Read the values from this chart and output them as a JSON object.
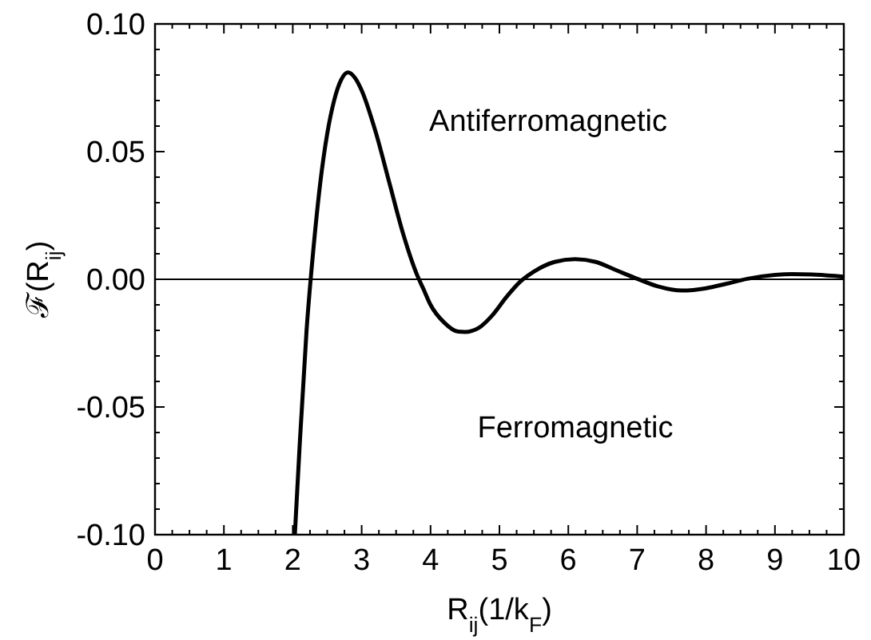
{
  "chart_data": {
    "type": "line",
    "xlabel": "R$_{ij}$(1/k$_{F}$)",
    "ylabel": "ℱ(R$_{ij}$)",
    "annotations": [
      "Antiferromagnetic",
      "Ferromagnetic"
    ],
    "xlim": [
      0,
      10
    ],
    "ylim": [
      -0.1,
      0.1
    ],
    "xticks": [
      0,
      {
        "value": 0.25,
        "label": null
      },
      {
        "value": 0.5,
        "label": null
      },
      {
        "value": 0.75,
        "label": null
      },
      1,
      {
        "value": 1.25,
        "label": null
      },
      {
        "value": 1.5,
        "label": null
      },
      {
        "value": 1.75,
        "label": null
      },
      2,
      {
        "value": 2.25,
        "label": null
      },
      {
        "value": 2.5,
        "label": null
      },
      {
        "value": 2.75,
        "label": null
      },
      3,
      {
        "value": 3.25,
        "label": null
      },
      {
        "value": 3.5,
        "label": null
      },
      {
        "value": 3.75,
        "label": null
      },
      4,
      {
        "value": 4.25,
        "label": null
      },
      {
        "value": 4.5,
        "label": null
      },
      {
        "value": 4.75,
        "label": null
      },
      5,
      {
        "value": 5.25,
        "label": null
      },
      {
        "value": 5.5,
        "label": null
      },
      {
        "value": 5.75,
        "label": null
      },
      6,
      {
        "value": 6.25,
        "label": null
      },
      {
        "value": 6.5,
        "label": null
      },
      {
        "value": 6.75,
        "label": null
      },
      7,
      {
        "value": 7.25,
        "label": null
      },
      {
        "value": 7.5,
        "label": null
      },
      {
        "value": 7.75,
        "label": null
      },
      8,
      {
        "value": 8.25,
        "label": null
      },
      {
        "value": 8.5,
        "label": null
      },
      {
        "value": 8.75,
        "label": null
      },
      9,
      {
        "value": 9.25,
        "label": null
      },
      {
        "value": 9.5,
        "label": null
      },
      {
        "value": 9.75,
        "label": null
      },
      10
    ],
    "yticks": [
      {
        "value": -0.1,
        "label": "-0.10"
      },
      {
        "value": -0.09,
        "label": null
      },
      {
        "value": -0.08,
        "label": null
      },
      {
        "value": -0.07,
        "label": null
      },
      {
        "value": -0.06,
        "label": null
      },
      {
        "value": -0.05,
        "label": "-0.05"
      },
      {
        "value": -0.04,
        "label": null
      },
      {
        "value": -0.03,
        "label": null
      },
      {
        "value": -0.02,
        "label": null
      },
      {
        "value": -0.01,
        "label": null
      },
      {
        "value": 0,
        "label": "0.00"
      },
      {
        "value": 0.01,
        "label": null
      },
      {
        "value": 0.02,
        "label": null
      },
      {
        "value": 0.03,
        "label": null
      },
      {
        "value": 0.04,
        "label": null
      },
      {
        "value": 0.05,
        "label": "0.05"
      },
      {
        "value": 0.06,
        "label": null
      },
      {
        "value": 0.07,
        "label": null
      },
      {
        "value": 0.08,
        "label": null
      },
      {
        "value": 0.09,
        "label": null
      },
      {
        "value": 0.1,
        "label": "0.10"
      }
    ],
    "ref_lines": [
      {
        "axis": "y",
        "value": 0,
        "color": "#000000"
      }
    ],
    "grid": false,
    "marker": "none",
    "line_style": "solid",
    "series": [
      {
        "color": "#000000",
        "x": [
          2.03,
          2.1,
          2.2,
          2.3,
          2.4,
          2.5,
          2.6,
          2.7,
          2.8,
          2.9,
          3.0,
          3.2,
          3.4,
          3.6,
          3.8,
          3.9,
          4.0,
          4.2,
          4.4,
          4.5,
          4.7,
          4.9,
          5.1,
          5.3,
          5.5,
          5.8,
          6.1,
          6.4,
          6.7,
          7.0,
          7.3,
          7.65,
          8.0,
          8.3,
          8.6,
          9.0,
          9.25,
          9.6,
          10
        ],
        "values": [
          -0.1,
          -0.065,
          -0.02,
          0.012,
          0.038,
          0.057,
          0.07,
          0.078,
          0.081,
          0.079,
          0.074,
          0.058,
          0.038,
          0.018,
          0.002,
          -0.004,
          -0.01,
          -0.017,
          -0.0205,
          -0.0206,
          -0.019,
          -0.014,
          -0.007,
          -0.001,
          0.003,
          0.0068,
          0.0079,
          0.0068,
          0.0035,
          0.0002,
          -0.0028,
          -0.0044,
          -0.0035,
          -0.0017,
          0.0002,
          0.0017,
          0.002,
          0.0018,
          0.001
        ]
      }
    ]
  }
}
